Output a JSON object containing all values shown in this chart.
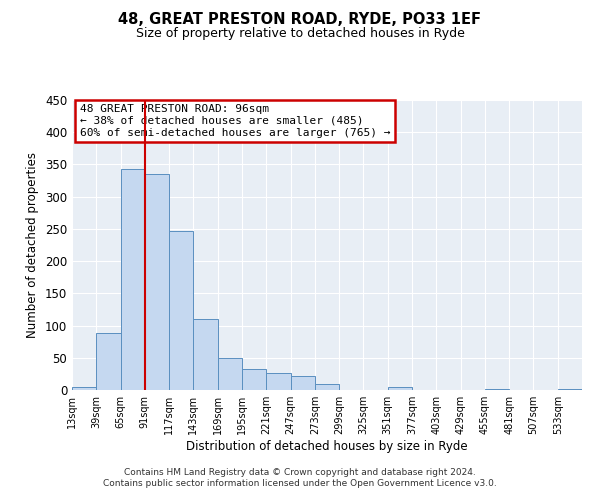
{
  "title": "48, GREAT PRESTON ROAD, RYDE, PO33 1EF",
  "subtitle": "Size of property relative to detached houses in Ryde",
  "xlabel": "Distribution of detached houses by size in Ryde",
  "ylabel": "Number of detached properties",
  "bin_labels": [
    "13sqm",
    "39sqm",
    "65sqm",
    "91sqm",
    "117sqm",
    "143sqm",
    "169sqm",
    "195sqm",
    "221sqm",
    "247sqm",
    "273sqm",
    "299sqm",
    "325sqm",
    "351sqm",
    "377sqm",
    "403sqm",
    "429sqm",
    "455sqm",
    "481sqm",
    "507sqm",
    "533sqm"
  ],
  "bar_values": [
    5,
    88,
    343,
    335,
    246,
    110,
    49,
    33,
    27,
    22,
    10,
    0,
    0,
    5,
    0,
    0,
    0,
    2,
    0,
    0,
    1
  ],
  "bar_color": "#c5d8f0",
  "bar_edge_color": "#5a8fc0",
  "bin_edges": [
    13,
    39,
    65,
    91,
    117,
    143,
    169,
    195,
    221,
    247,
    273,
    299,
    325,
    351,
    377,
    403,
    429,
    455,
    481,
    507,
    533,
    559
  ],
  "annotation_title": "48 GREAT PRESTON ROAD: 96sqm",
  "annotation_line1": "← 38% of detached houses are smaller (485)",
  "annotation_line2": "60% of semi-detached houses are larger (765) →",
  "red_line_color": "#cc0000",
  "ylim": [
    0,
    450
  ],
  "yticks": [
    0,
    50,
    100,
    150,
    200,
    250,
    300,
    350,
    400,
    450
  ],
  "background_color": "#e8eef5",
  "footer_line1": "Contains HM Land Registry data © Crown copyright and database right 2024.",
  "footer_line2": "Contains public sector information licensed under the Open Government Licence v3.0."
}
